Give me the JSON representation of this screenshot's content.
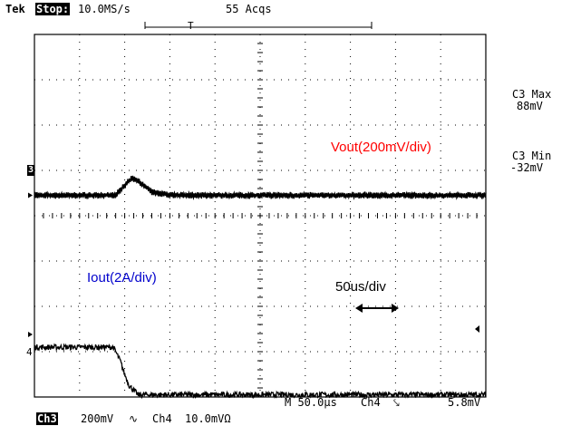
{
  "header": {
    "brand": "Tek",
    "state": "Stop:",
    "sample_rate": "10.0MS/s",
    "acquisitions": "55 Acqs",
    "trigger_marker": "T"
  },
  "measurements": {
    "c3_max_label": "C3 Max",
    "c3_max_value": "88mV",
    "c3_min_label": "C3 Min",
    "c3_min_value": "-32mV"
  },
  "footer": {
    "ch3_badge": "Ch3",
    "ch3_scale": "200mV",
    "ch3_coupling_symbol": "∿",
    "ch4_label": "Ch4",
    "ch4_scale": "10.0mVΩ",
    "timebase": "M 50.0µs",
    "trigger_source": "Ch4",
    "trigger_slope_symbol": "⤥",
    "trigger_level": "5.8mV"
  },
  "markers": {
    "ch3_ground": "3",
    "ch4_ground": "4"
  },
  "annotations": {
    "vout": "Vout(200mV/div)",
    "iout": "Iout(2A/div)",
    "time": "50us/div"
  },
  "colors": {
    "vout_label": "#ff0000",
    "iout_label": "#0000cc",
    "trace": "#000000",
    "grid": "#000000"
  },
  "chart_data": {
    "type": "line",
    "title": "",
    "xlabel": "",
    "ylabel": "",
    "grid": true,
    "x_divisions": 10,
    "y_divisions": 8,
    "xlim_div": [
      0,
      10
    ],
    "ylim_div": [
      -4,
      4
    ],
    "series": [
      {
        "name": "Vout(200mV/div)",
        "x_div": [
          0,
          1.8,
          2.0,
          2.15,
          2.35,
          2.6,
          3.0,
          10
        ],
        "y_div": [
          0,
          0,
          0.22,
          0.38,
          0.28,
          0.08,
          0,
          0
        ],
        "ripple_div": 0.12
      },
      {
        "name": "Iout(2A/div)",
        "x_div": [
          0,
          1.75,
          1.9,
          2.0,
          2.1,
          2.3,
          10
        ],
        "y_div": [
          -2.9,
          -2.9,
          -3.2,
          -3.5,
          -3.75,
          -3.95,
          -3.95
        ],
        "ripple_div": 0.06
      }
    ]
  }
}
